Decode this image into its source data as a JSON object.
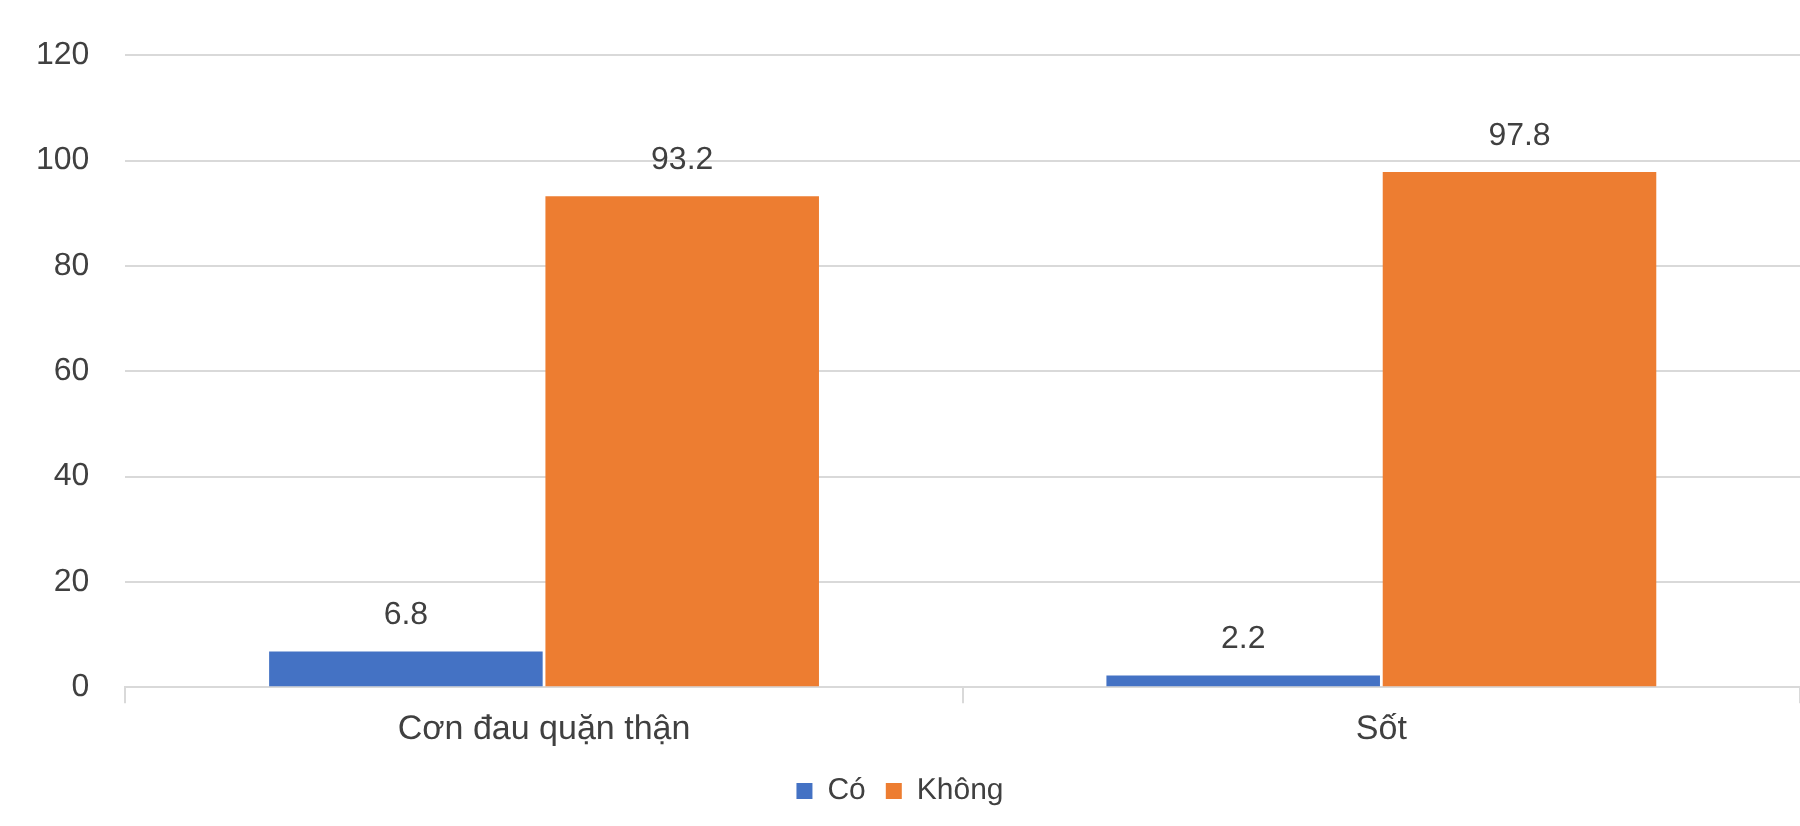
{
  "chart_data": {
    "type": "bar",
    "categories": [
      "Cơn đau quặn thận",
      "Sốt"
    ],
    "series": [
      {
        "name": "Có",
        "color": "#4472c4",
        "values": [
          6.8,
          2.2
        ]
      },
      {
        "name": "Không",
        "color": "#ed7d31",
        "values": [
          93.2,
          97.8
        ]
      }
    ],
    "ylim": [
      0,
      120
    ],
    "yticks": [
      0,
      20,
      40,
      60,
      80,
      100,
      120
    ],
    "grid": "y",
    "legend": "bottom",
    "data_labels": true
  }
}
